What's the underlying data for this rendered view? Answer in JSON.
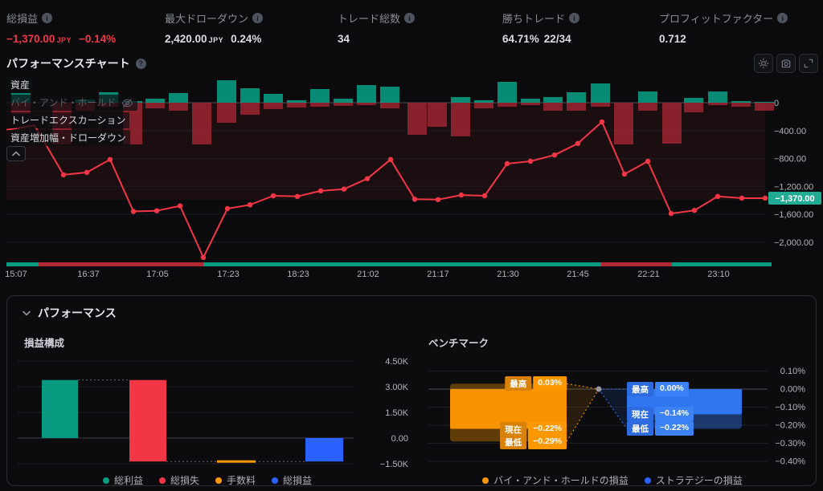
{
  "stats": [
    {
      "label": "総損益",
      "value": "−1,370.00",
      "unit": "JPY",
      "extra": "−0.14%",
      "negative": true
    },
    {
      "label": "最大ドローダウン",
      "value": "2,420.00",
      "unit": "JPY",
      "extra": "0.24%",
      "negative": false
    },
    {
      "label": "トレード総数",
      "value": "34"
    },
    {
      "label": "勝ちトレード",
      "value": "64.71%",
      "extra": "22/34"
    },
    {
      "label": "プロフィットファクター",
      "value": "0.712"
    }
  ],
  "performance_chart": {
    "title": "パフォーマンスチャート",
    "legend_overlay": [
      {
        "label": "資産",
        "dimmed": false,
        "eye_off": false
      },
      {
        "label": "バイ・アンド・ホールド",
        "dimmed": true,
        "eye_off": true
      },
      {
        "label": "トレードエクスカーション",
        "dimmed": false,
        "eye_off": false
      },
      {
        "label": "資産増加幅・ドローダウン",
        "dimmed": false,
        "eye_off": false
      }
    ]
  },
  "panel": {
    "title": "パフォーマンス",
    "left_subtitle": "損益構成",
    "right_subtitle": "ベンチマーク"
  },
  "colors": {
    "profit_green": "#089981",
    "loss_red": "#f23645",
    "bar_red_dim": "#9c2531",
    "strip_red": "#b22833",
    "commission_orange": "#ff9800",
    "total_blue": "#2962ff",
    "benchmark_blue": "#3179f5",
    "current_label_teal": "#22ab94",
    "axis_text": "#b2b5be"
  },
  "chart_data": [
    {
      "type": "line",
      "title": "パフォーマンスチャート",
      "series": [
        {
          "name": "資産",
          "type": "line",
          "color": "#f23645",
          "unit": "JPY",
          "points": [
            [
              8,
              -390
            ],
            [
              43,
              -325
            ],
            [
              79,
              -1035
            ],
            [
              108,
              -1000
            ],
            [
              137,
              -815
            ],
            [
              166,
              -1560
            ],
            [
              195,
              -1550
            ],
            [
              224,
              -1480
            ],
            [
              253,
              -2220
            ],
            [
              283,
              -1520
            ],
            [
              311,
              -1465
            ],
            [
              340,
              -1335
            ],
            [
              370,
              -1345
            ],
            [
              399,
              -1265
            ],
            [
              428,
              -1240
            ],
            [
              457,
              -1090
            ],
            [
              486,
              -815
            ],
            [
              516,
              -1385
            ],
            [
              545,
              -1390
            ],
            [
              574,
              -1325
            ],
            [
              603,
              -1335
            ],
            [
              631,
              -875
            ],
            [
              660,
              -840
            ],
            [
              690,
              -750
            ],
            [
              719,
              -585
            ],
            [
              749,
              -275
            ],
            [
              777,
              -1025
            ],
            [
              806,
              -840
            ],
            [
              835,
              -1590
            ],
            [
              864,
              -1545
            ],
            [
              893,
              -1345
            ],
            [
              923,
              -1370
            ],
            [
              952,
              -1370
            ]
          ]
        },
        {
          "name": "トレードエクスカーション",
          "type": "bar",
          "bars": [
            [
              26,
              138,
              161
            ],
            [
              77,
              0,
              598
            ],
            [
              106,
              46,
              115
            ],
            [
              135,
              150,
              58
            ],
            [
              165,
              23,
              598
            ],
            [
              193,
              58,
              81
            ],
            [
              222,
              138,
              115
            ],
            [
              251,
              0,
              598
            ],
            [
              282,
              322,
              288
            ],
            [
              311,
              207,
              173
            ],
            [
              340,
              127,
              92
            ],
            [
              369,
              35,
              69
            ],
            [
              398,
              196,
              58
            ],
            [
              427,
              58,
              46
            ],
            [
              456,
              253,
              35
            ],
            [
              485,
              230,
              81
            ],
            [
              519,
              0,
              460
            ],
            [
              544,
              0,
              345
            ],
            [
              573,
              81,
              483
            ],
            [
              602,
              35,
              81
            ],
            [
              631,
              299,
              58
            ],
            [
              660,
              58,
              35
            ],
            [
              688,
              81,
              115
            ],
            [
              717,
              150,
              115
            ],
            [
              747,
              276,
              58
            ],
            [
              776,
              0,
              598
            ],
            [
              806,
              161,
              115
            ],
            [
              836,
              0,
              587
            ],
            [
              863,
              69,
              138
            ],
            [
              893,
              161,
              35
            ],
            [
              922,
              23,
              58
            ],
            [
              951,
              12,
              115
            ]
          ]
        },
        {
          "name": "資産増加幅・ドローダウン",
          "type": "band",
          "range": [
            0,
            -1370
          ]
        }
      ],
      "y_ticks": [
        [
          0,
          "0"
        ],
        [
          -400,
          "−400.00"
        ],
        [
          -800,
          "−800.00"
        ],
        [
          -1200,
          "−1,200.00"
        ],
        [
          -1600,
          "−1,600.00"
        ],
        [
          -2000,
          "−2,000.00"
        ]
      ],
      "y_current": {
        "v": -1370,
        "label": "−1,370.00"
      },
      "x_labels": [
        [
          "15:07",
          20
        ],
        [
          "16:37",
          110
        ],
        [
          "17:05",
          196
        ],
        [
          "17:23",
          284
        ],
        [
          "18:23",
          371
        ],
        [
          "21:02",
          458
        ],
        [
          "21:17",
          545
        ],
        [
          "21:30",
          632
        ],
        [
          "21:45",
          719
        ],
        [
          "22:21",
          807
        ],
        [
          "23:10",
          894
        ]
      ],
      "win_loss_strip": [
        [
          8,
          48,
          "win"
        ],
        [
          48,
          253,
          "loss"
        ],
        [
          253,
          748,
          "win"
        ],
        [
          748,
          836,
          "loss"
        ],
        [
          836,
          960,
          "win"
        ]
      ]
    },
    {
      "type": "waterfall",
      "title": "損益構成",
      "categories": [
        "総利益",
        "総損失",
        "手数料",
        "総損益"
      ],
      "values": [
        3390,
        -4760,
        0,
        -1370
      ],
      "levels": [
        [
          0,
          3390
        ],
        [
          3390,
          -1370
        ],
        [
          -1370,
          -1370
        ],
        [
          0,
          -1370
        ]
      ],
      "colors": [
        "#089981",
        "#f23645",
        "#ff9800",
        "#2962ff"
      ],
      "ylim": [
        -1500,
        4500
      ],
      "y_ticks": [
        [
          4500,
          "4.50K"
        ],
        [
          3000,
          "3.00K"
        ],
        [
          1500,
          "1.50K"
        ],
        [
          0,
          "0.00"
        ],
        [
          -1500,
          "−1.50K"
        ]
      ],
      "legend": [
        {
          "label": "総利益",
          "color": "#089981"
        },
        {
          "label": "総損失",
          "color": "#f23645"
        },
        {
          "label": "手数料",
          "color": "#ff9800"
        },
        {
          "label": "総損益",
          "color": "#2962ff"
        }
      ]
    },
    {
      "type": "range-box",
      "title": "ベンチマーク",
      "series": [
        {
          "name": "バイ・アンド・ホールドの損益",
          "color": "#ff9800",
          "high": 0.03,
          "current": -0.22,
          "low": -0.29
        },
        {
          "name": "ストラテジーの損益",
          "color": "#3179f5",
          "high": 0.0,
          "current": -0.14,
          "low": -0.22
        }
      ],
      "markers": [
        {
          "series": 0,
          "label": "最高",
          "value": "0.03%",
          "x": 705,
          "y": 478,
          "align": "right"
        },
        {
          "series": 0,
          "label": "現在",
          "value": "−0.22%",
          "x": 705,
          "y": 535,
          "align": "right"
        },
        {
          "series": 0,
          "label": "最低",
          "value": "−0.29%",
          "x": 705,
          "y": 551,
          "align": "right"
        },
        {
          "series": 1,
          "label": "最高",
          "value": "0.00%",
          "x": 780,
          "y": 485,
          "align": "left"
        },
        {
          "series": 1,
          "label": "現在",
          "value": "−0.14%",
          "x": 780,
          "y": 516,
          "align": "left"
        },
        {
          "series": 1,
          "label": "最低",
          "value": "−0.22%",
          "x": 780,
          "y": 534,
          "align": "left"
        }
      ],
      "ylim": [
        -0.45,
        0.13
      ],
      "y_ticks": [
        [
          0.1,
          "0.10%"
        ],
        [
          0,
          "0.00%"
        ],
        [
          -0.1,
          "−0.10%"
        ],
        [
          -0.2,
          "−0.20%"
        ],
        [
          -0.3,
          "−0.30%"
        ],
        [
          -0.4,
          "−0.40%"
        ]
      ],
      "legend": [
        {
          "label": "バイ・アンド・ホールドの損益",
          "color": "#ff9800"
        },
        {
          "label": "ストラテジーの損益",
          "color": "#2962ff"
        }
      ]
    }
  ]
}
